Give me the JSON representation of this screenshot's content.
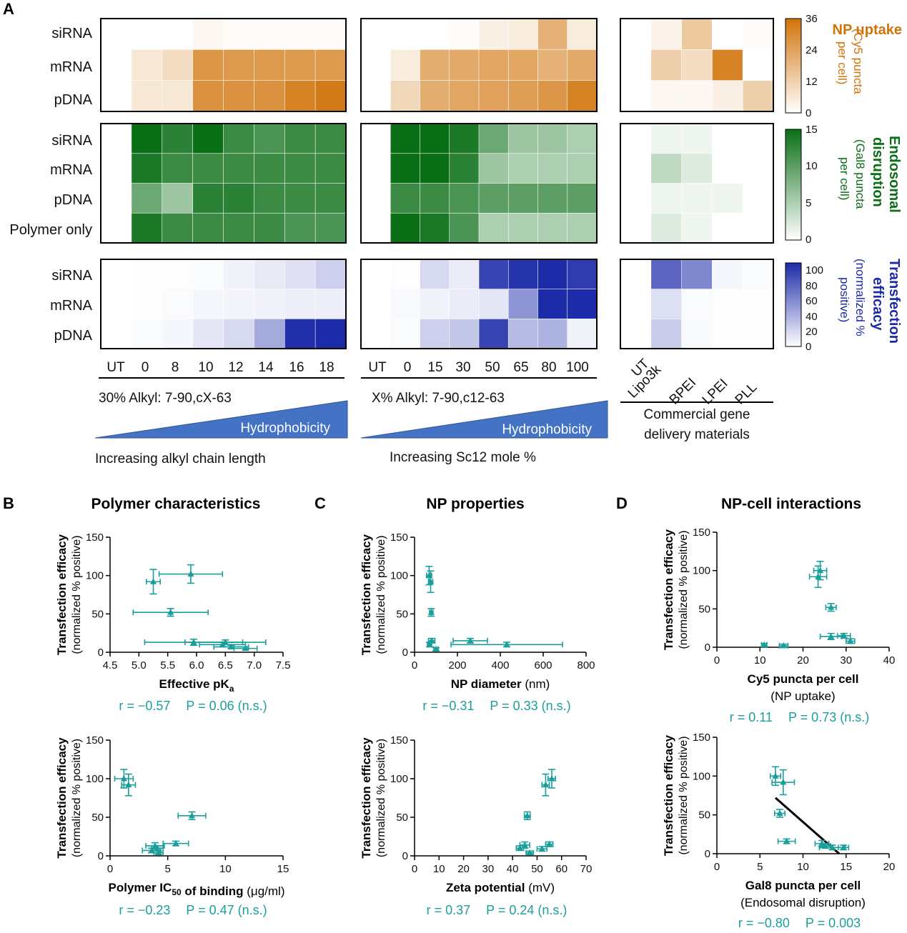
{
  "panel_letters": {
    "a": "A",
    "b": "B",
    "c": "C",
    "d": "D"
  },
  "colors": {
    "uptake": "#d0730a",
    "endosomal": "#0a6e16",
    "transfection": "#1c2ba8",
    "scatter": "#1a9e9c",
    "arrow_fill": "#4472c4"
  },
  "heatmap": {
    "group1": {
      "columns": [
        "UT",
        "0",
        "8",
        "10",
        "12",
        "14",
        "16",
        "18"
      ],
      "title": "30% Alkyl: 7-90,cX-63",
      "arrow_label": "Hydrophobicity",
      "footer": "Increasing alkyl chain length"
    },
    "group2": {
      "columns": [
        "UT",
        "0",
        "15",
        "30",
        "50",
        "65",
        "80",
        "100"
      ],
      "title": "X% Alkyl: 7-90,c12-63",
      "arrow_label": "Hydrophobicity",
      "footer": "Increasing Sc12 mole %"
    },
    "group3": {
      "columns": [
        "UT",
        "Lipo3k",
        "BPEI",
        "LPEI",
        "PLL"
      ],
      "title_line1": "Commercial gene",
      "title_line2": "delivery materials"
    }
  },
  "chart_data": [
    {
      "type": "heatmap",
      "name": "NP uptake",
      "rows": [
        "siRNA",
        "mRNA",
        "pDNA"
      ],
      "values": {
        "group1": [
          [
            0,
            0,
            0,
            2,
            1,
            1,
            1,
            1
          ],
          [
            0,
            6,
            9,
            27,
            26,
            26,
            26,
            26
          ],
          [
            0,
            6,
            6,
            28,
            28,
            28,
            32,
            34
          ]
        ],
        "group2": [
          [
            0,
            0,
            0,
            1,
            4,
            5,
            20,
            5
          ],
          [
            0,
            5,
            21,
            22,
            23,
            23,
            20,
            22
          ],
          [
            0,
            10,
            21,
            23,
            24,
            25,
            27,
            32
          ]
        ],
        "group3": [
          [
            0,
            3,
            14,
            0,
            1
          ],
          [
            0,
            12,
            9,
            32,
            0
          ],
          [
            0,
            2,
            2,
            4,
            12
          ]
        ]
      },
      "colorbar": {
        "min": 0,
        "max": 36,
        "ticks": [
          "36",
          "24",
          "12",
          "0"
        ]
      },
      "label_bold": "NP uptake",
      "label_sub": [
        "(Cy5 puncta",
        "per cell)"
      ]
    },
    {
      "type": "heatmap",
      "name": "Endosomal disruption",
      "rows": [
        "siRNA",
        "mRNA",
        "pDNA",
        "Polymer only"
      ],
      "values": {
        "group1": [
          [
            0,
            15,
            13,
            15,
            12,
            11,
            12,
            12
          ],
          [
            0,
            14,
            12,
            12,
            12,
            12,
            12,
            12
          ],
          [
            0,
            9,
            6,
            13,
            13,
            12,
            12,
            12
          ],
          [
            0,
            14,
            12,
            12,
            12,
            12,
            11,
            11
          ]
        ],
        "group2": [
          [
            0,
            15,
            15,
            14,
            9,
            6,
            6,
            5
          ],
          [
            0,
            15,
            15,
            13,
            6,
            5,
            5,
            5
          ],
          [
            0,
            12,
            12,
            11,
            10,
            10,
            10,
            10
          ],
          [
            0,
            15,
            14,
            11,
            5,
            5,
            5,
            5
          ]
        ],
        "group3": [
          [
            0,
            1,
            1,
            0,
            0
          ],
          [
            0,
            4,
            2,
            0,
            0
          ],
          [
            0,
            1,
            1,
            1,
            0
          ],
          [
            0,
            2,
            1,
            0,
            0
          ]
        ]
      },
      "colorbar": {
        "min": 0,
        "max": 15,
        "ticks": [
          "15",
          "10",
          "5",
          "0"
        ]
      },
      "label_bold": [
        "Endosomal",
        "disruption"
      ],
      "label_sub": [
        "(Gal8 puncta",
        "per cell)"
      ]
    },
    {
      "type": "heatmap",
      "name": "Transfection efficacy",
      "rows": [
        "siRNA",
        "mRNA",
        "pDNA"
      ],
      "values": {
        "group1": [
          [
            0,
            1,
            1,
            2,
            6,
            10,
            14,
            22
          ],
          [
            0,
            1,
            2,
            4,
            5,
            6,
            8,
            8
          ],
          [
            0,
            2,
            4,
            12,
            18,
            40,
            98,
            100
          ]
        ],
        "group2": [
          [
            0,
            1,
            18,
            9,
            88,
            96,
            100,
            92
          ],
          [
            0,
            3,
            6,
            9,
            12,
            50,
            100,
            103
          ],
          [
            0,
            2,
            22,
            26,
            88,
            32,
            36,
            6
          ]
        ],
        "group3": [
          [
            0,
            72,
            56,
            4,
            2
          ],
          [
            0,
            15,
            2,
            1,
            1
          ],
          [
            0,
            24,
            3,
            1,
            1
          ]
        ]
      },
      "colorbar": {
        "min": 0,
        "max": 100,
        "ticks": [
          "100",
          "80",
          "60",
          "40",
          "20",
          "0"
        ]
      },
      "label_bold": [
        "Transfection",
        "efficacy"
      ],
      "label_sub": [
        "(normalized %",
        "positive)"
      ]
    },
    {
      "type": "scatter",
      "panel": "B-top",
      "title": "Polymer characteristics",
      "ylabel": "Transfection efficacy",
      "ylabel2": "(normalized % positive)",
      "xlabel_bold": "Effective pK",
      "xlabel_sub": "a",
      "xlim": [
        4.5,
        7.5
      ],
      "ylim": [
        0,
        150
      ],
      "xticks": [
        "4.5",
        "5.0",
        "5.5",
        "6.0",
        "6.5",
        "7.0",
        "7.5"
      ],
      "yticks": [
        "0",
        "50",
        "100",
        "150"
      ],
      "points": [
        {
          "x": 5.25,
          "y": 92,
          "xerr": 0.12,
          "yerr": 16
        },
        {
          "x": 5.9,
          "y": 102,
          "xerr": 0.55,
          "yerr": 12
        },
        {
          "x": 5.55,
          "y": 52,
          "xerr": 0.65,
          "yerr": 5
        },
        {
          "x": 5.95,
          "y": 13,
          "xerr": 0.85,
          "yerr": 4
        },
        {
          "x": 6.5,
          "y": 13,
          "xerr": 0.7,
          "yerr": 3
        },
        {
          "x": 6.45,
          "y": 10,
          "xerr": 0.4,
          "yerr": 3
        },
        {
          "x": 6.6,
          "y": 7,
          "xerr": 0.3,
          "yerr": 2
        },
        {
          "x": 6.85,
          "y": 5,
          "xerr": 0.2,
          "yerr": 2
        }
      ],
      "stat_r": "r = −0.57",
      "stat_p": "P = 0.06 (n.s.)"
    },
    {
      "type": "scatter",
      "panel": "B-bottom",
      "ylabel": "Transfection efficacy",
      "ylabel2": "(normalized % positive)",
      "xlabel_bold": "Polymer IC",
      "xlabel_sub": "50",
      "xlabel_rest_bold": " of binding",
      "xlabel_unit": "(μg/ml)",
      "xlim": [
        0,
        15
      ],
      "ylim": [
        0,
        150
      ],
      "xticks": [
        "0",
        "5",
        "10",
        "15"
      ],
      "yticks": [
        "0",
        "50",
        "100",
        "150"
      ],
      "points": [
        {
          "x": 1.2,
          "y": 100,
          "xerr": 0.8,
          "yerr": 12
        },
        {
          "x": 1.6,
          "y": 92,
          "xerr": 0.6,
          "yerr": 14
        },
        {
          "x": 7.1,
          "y": 52,
          "xerr": 1.2,
          "yerr": 5
        },
        {
          "x": 5.7,
          "y": 16,
          "xerr": 1.1,
          "yerr": 3
        },
        {
          "x": 3.9,
          "y": 13,
          "xerr": 0.8,
          "yerr": 4
        },
        {
          "x": 4.1,
          "y": 10,
          "xerr": 0.5,
          "yerr": 3
        },
        {
          "x": 3.6,
          "y": 7,
          "xerr": 0.8,
          "yerr": 3
        },
        {
          "x": 4.2,
          "y": 4,
          "xerr": 0.4,
          "yerr": 2
        }
      ],
      "stat_r": "r = −0.23",
      "stat_p": "P = 0.47 (n.s.)"
    },
    {
      "type": "scatter",
      "panel": "C-top",
      "title": "NP properties",
      "ylabel": "Transfection efficacy",
      "ylabel2": "(normalized % positive)",
      "xlabel_bold": "NP diameter",
      "xlabel_unit": "(nm)",
      "xlim": [
        0,
        800
      ],
      "ylim": [
        0,
        150
      ],
      "xticks": [
        "0",
        "200",
        "400",
        "600",
        "800"
      ],
      "yticks": [
        "0",
        "50",
        "100",
        "150"
      ],
      "points": [
        {
          "x": 68,
          "y": 100,
          "xerr": 12,
          "yerr": 12
        },
        {
          "x": 75,
          "y": 92,
          "xerr": 10,
          "yerr": 14
        },
        {
          "x": 78,
          "y": 52,
          "xerr": 8,
          "yerr": 5
        },
        {
          "x": 80,
          "y": 15,
          "xerr": 15,
          "yerr": 3
        },
        {
          "x": 260,
          "y": 15,
          "xerr": 80,
          "yerr": 3
        },
        {
          "x": 430,
          "y": 10,
          "xerr": 260,
          "yerr": 3
        },
        {
          "x": 70,
          "y": 10,
          "xerr": 10,
          "yerr": 3
        },
        {
          "x": 100,
          "y": 4,
          "xerr": 10,
          "yerr": 2
        }
      ],
      "stat_r": "r = −0.31",
      "stat_p": "P = 0.33 (n.s.)"
    },
    {
      "type": "scatter",
      "panel": "C-bottom",
      "ylabel": "Transfection efficacy",
      "ylabel2": "(normalized % positive)",
      "xlabel_bold": "Zeta potential",
      "xlabel_unit": "(mV)",
      "xlim": [
        0,
        70
      ],
      "ylim": [
        0,
        150
      ],
      "xticks": [
        "0",
        "10",
        "20",
        "30",
        "40",
        "50",
        "60",
        "70"
      ],
      "yticks": [
        "0",
        "50",
        "100",
        "150"
      ],
      "points": [
        {
          "x": 53.5,
          "y": 92,
          "xerr": 1.5,
          "yerr": 14
        },
        {
          "x": 56,
          "y": 100,
          "xerr": 1.5,
          "yerr": 12
        },
        {
          "x": 46,
          "y": 52,
          "xerr": 1.2,
          "yerr": 5
        },
        {
          "x": 45,
          "y": 14,
          "xerr": 2,
          "yerr": 4
        },
        {
          "x": 55,
          "y": 15,
          "xerr": 1.5,
          "yerr": 3
        },
        {
          "x": 52,
          "y": 9,
          "xerr": 2,
          "yerr": 3
        },
        {
          "x": 43,
          "y": 10,
          "xerr": 1.5,
          "yerr": 3
        },
        {
          "x": 47,
          "y": 4,
          "xerr": 1.5,
          "yerr": 2
        }
      ],
      "stat_r": "r = 0.37",
      "stat_p": "P = 0.24 (n.s.)"
    },
    {
      "type": "scatter",
      "panel": "D-top",
      "title": "NP-cell interactions",
      "ylabel": "Transfection efficacy",
      "ylabel2": "(normalized % positive)",
      "xlabel_bold": "Cy5 puncta per cell",
      "xlabel_line2": "(NP uptake)",
      "xlim": [
        0,
        40
      ],
      "ylim": [
        0,
        150
      ],
      "xticks": [
        "0",
        "10",
        "20",
        "30",
        "40"
      ],
      "yticks": [
        "0",
        "50",
        "100",
        "150"
      ],
      "points": [
        {
          "x": 23.5,
          "y": 92,
          "xerr": 2,
          "yerr": 14
        },
        {
          "x": 24,
          "y": 100,
          "xerr": 1.5,
          "yerr": 12
        },
        {
          "x": 26.5,
          "y": 52,
          "xerr": 1.2,
          "yerr": 5
        },
        {
          "x": 26.5,
          "y": 14,
          "xerr": 2.5,
          "yerr": 4
        },
        {
          "x": 29.5,
          "y": 15,
          "xerr": 1.5,
          "yerr": 3
        },
        {
          "x": 31,
          "y": 8,
          "xerr": 1,
          "yerr": 3
        },
        {
          "x": 11,
          "y": 3,
          "xerr": 0.6,
          "yerr": 2
        },
        {
          "x": 15.5,
          "y": 2,
          "xerr": 1,
          "yerr": 2
        }
      ],
      "stat_r": "r = 0.11",
      "stat_p": "P = 0.73 (n.s.)"
    },
    {
      "type": "scatter",
      "panel": "D-bottom",
      "ylabel": "Transfection efficacy",
      "ylabel2": "(normalized % positive)",
      "xlabel_bold": "Gal8 puncta per cell",
      "xlabel_line2": "(Endosomal disruption)",
      "xlim": [
        0,
        20
      ],
      "ylim": [
        0,
        150
      ],
      "xticks": [
        "0",
        "5",
        "10",
        "15",
        "20"
      ],
      "yticks": [
        "0",
        "50",
        "100",
        "150"
      ],
      "points": [
        {
          "x": 6.8,
          "y": 100,
          "xerr": 0.6,
          "yerr": 12
        },
        {
          "x": 7.7,
          "y": 92,
          "xerr": 1.3,
          "yerr": 16
        },
        {
          "x": 7.3,
          "y": 52,
          "xerr": 0.6,
          "yerr": 5
        },
        {
          "x": 8.1,
          "y": 16,
          "xerr": 1,
          "yerr": 3
        },
        {
          "x": 12.2,
          "y": 13,
          "xerr": 0.8,
          "yerr": 4
        },
        {
          "x": 12.6,
          "y": 10,
          "xerr": 0.6,
          "yerr": 3
        },
        {
          "x": 13.4,
          "y": 8,
          "xerr": 1.5,
          "yerr": 3
        },
        {
          "x": 14.7,
          "y": 8,
          "xerr": 0.6,
          "yerr": 3
        }
      ],
      "fit_line": [
        [
          6.8,
          72
        ],
        [
          14.2,
          0
        ]
      ],
      "stat_r": "r = −0.80",
      "stat_p": "P = 0.003"
    }
  ]
}
